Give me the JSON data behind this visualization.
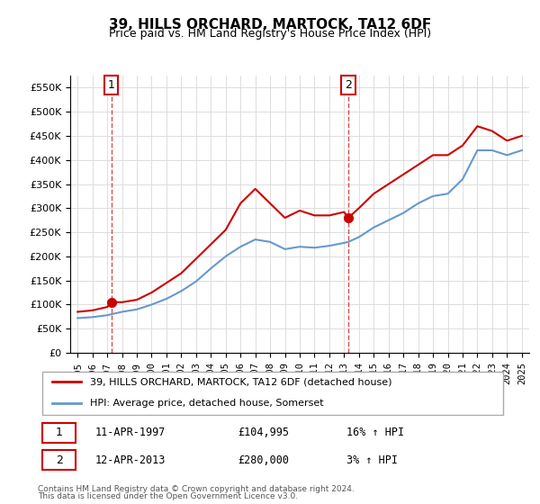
{
  "title": "39, HILLS ORCHARD, MARTOCK, TA12 6DF",
  "subtitle": "Price paid vs. HM Land Registry's House Price Index (HPI)",
  "legend_line1": "39, HILLS ORCHARD, MARTOCK, TA12 6DF (detached house)",
  "legend_line2": "HPI: Average price, detached house, Somerset",
  "table_rows": [
    {
      "num": "1",
      "date": "11-APR-1997",
      "price": "£104,995",
      "hpi": "16% ↑ HPI"
    },
    {
      "num": "2",
      "date": "12-APR-2013",
      "price": "£280,000",
      "hpi": "3% ↑ HPI"
    }
  ],
  "footnote1": "Contains HM Land Registry data © Crown copyright and database right 2024.",
  "footnote2": "This data is licensed under the Open Government Licence v3.0.",
  "red_color": "#cc0000",
  "blue_color": "#6699cc",
  "dashed_red": "#cc0000",
  "sale1_year": 1997.28,
  "sale2_year": 2013.28,
  "ylim": [
    0,
    575000
  ],
  "yticks": [
    0,
    50000,
    100000,
    150000,
    200000,
    250000,
    300000,
    350000,
    400000,
    450000,
    500000,
    550000
  ],
  "xlim": [
    1994.5,
    2025.5
  ],
  "hpi_years": [
    1995,
    1996,
    1997,
    1997.28,
    1998,
    1999,
    2000,
    2001,
    2002,
    2003,
    2004,
    2005,
    2006,
    2007,
    2008,
    2009,
    2010,
    2011,
    2012,
    2013,
    2013.28,
    2014,
    2015,
    2016,
    2017,
    2018,
    2019,
    2020,
    2021,
    2022,
    2023,
    2024,
    2025
  ],
  "hpi_values": [
    72000,
    74000,
    78000,
    80000,
    85000,
    90000,
    100000,
    112000,
    128000,
    148000,
    175000,
    200000,
    220000,
    235000,
    230000,
    215000,
    220000,
    218000,
    222000,
    228000,
    230000,
    240000,
    260000,
    275000,
    290000,
    310000,
    325000,
    330000,
    360000,
    420000,
    420000,
    410000,
    420000
  ],
  "red_years": [
    1995,
    1996,
    1997,
    1997.28,
    1998,
    1999,
    2000,
    2001,
    2002,
    2003,
    2004,
    2005,
    2006,
    2007,
    2008,
    2009,
    2010,
    2011,
    2012,
    2013,
    2013.28,
    2014,
    2015,
    2016,
    2017,
    2018,
    2019,
    2020,
    2021,
    2022,
    2023,
    2024,
    2025
  ],
  "red_values": [
    85000,
    88000,
    95000,
    104995,
    105000,
    110000,
    125000,
    145000,
    165000,
    195000,
    225000,
    255000,
    310000,
    340000,
    310000,
    280000,
    295000,
    285000,
    285000,
    292000,
    280000,
    300000,
    330000,
    350000,
    370000,
    390000,
    410000,
    410000,
    430000,
    470000,
    460000,
    440000,
    450000
  ],
  "xtick_years": [
    1995,
    1996,
    1997,
    1998,
    1999,
    2000,
    2001,
    2002,
    2003,
    2004,
    2005,
    2006,
    2007,
    2008,
    2009,
    2010,
    2011,
    2012,
    2013,
    2014,
    2015,
    2016,
    2017,
    2018,
    2019,
    2020,
    2021,
    2022,
    2023,
    2024,
    2025
  ]
}
